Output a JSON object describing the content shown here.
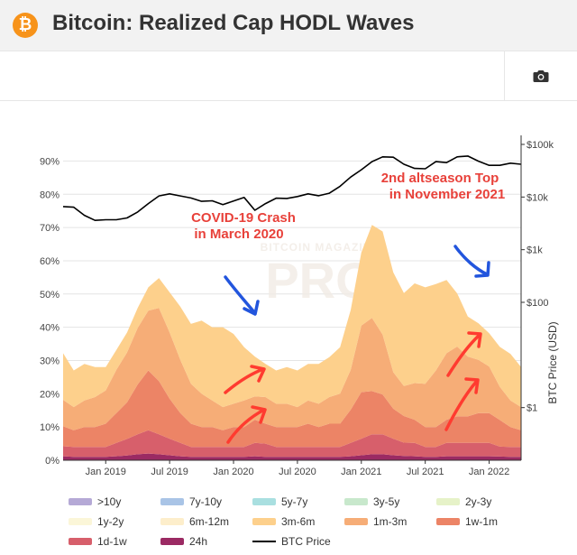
{
  "header": {
    "logo_glyph": "₿",
    "title": "Bitcoin: Realized Cap HODL Waves"
  },
  "toolbar": {
    "camera_icon": "camera-icon"
  },
  "watermark": {
    "top": "BITCOIN MAGAZINE",
    "bottom": "PRO"
  },
  "annotations": [
    {
      "text": "COVID-19 Crash",
      "color": "#e8413a"
    },
    {
      "text": "in March 2020",
      "color": "#e8413a"
    },
    {
      "text": "2nd altseason Top",
      "color": "#e8413a"
    },
    {
      "text": "in November 2021",
      "color": "#e8413a"
    }
  ],
  "chart_data": {
    "type": "area",
    "title": "Bitcoin: Realized Cap HODL Waves",
    "xlabel": "",
    "ylabel": "",
    "y2label": "BTC Price (USD)",
    "ylim": [
      0,
      95
    ],
    "y2lim_log": [
      0.1,
      100000
    ],
    "x_ticks": [
      "Jan 2019",
      "Jul 2019",
      "Jan 2020",
      "Jul 2020",
      "Jan 2021",
      "Jul 2021",
      "Jan 2022"
    ],
    "y_ticks": [
      "0%",
      "10%",
      "20%",
      "30%",
      "40%",
      "50%",
      "60%",
      "70%",
      "80%",
      "90%"
    ],
    "y2_ticks": [
      "$1",
      "$100",
      "$1k",
      "$10k",
      "$100k"
    ],
    "y2_tick_values": [
      1,
      100,
      1000,
      10000,
      100000
    ],
    "dates": [
      "2018-09",
      "2018-10",
      "2018-11",
      "2018-12",
      "2019-01",
      "2019-02",
      "2019-03",
      "2019-04",
      "2019-05",
      "2019-06",
      "2019-07",
      "2019-08",
      "2019-09",
      "2019-10",
      "2019-11",
      "2019-12",
      "2020-01",
      "2020-02",
      "2020-03",
      "2020-04",
      "2020-05",
      "2020-06",
      "2020-07",
      "2020-08",
      "2020-09",
      "2020-10",
      "2020-11",
      "2020-12",
      "2021-01",
      "2021-02",
      "2021-03",
      "2021-04",
      "2021-05",
      "2021-06",
      "2021-07",
      "2021-08",
      "2021-09",
      "2021-10",
      "2021-11",
      "2021-12",
      "2022-01",
      "2022-02",
      "2022-03",
      "2022-04"
    ],
    "series": [
      {
        "name": ">10y",
        "color": "#b5a9d6",
        "values": [
          0,
          0,
          0,
          0,
          0,
          0,
          0,
          0,
          0,
          0,
          0,
          0,
          0,
          0,
          0,
          0,
          0,
          0,
          0,
          0,
          0,
          0,
          0,
          0,
          0,
          0,
          0,
          0,
          0,
          0,
          0,
          0,
          0,
          0,
          0,
          0,
          0,
          0,
          0,
          0,
          0,
          0,
          0,
          0
        ]
      },
      {
        "name": "7y-10y",
        "color": "#a9c4e6",
        "values": [
          0,
          0,
          0,
          0,
          0,
          0,
          0,
          0,
          0,
          0,
          0,
          0,
          0,
          0,
          0,
          0,
          0,
          0,
          0,
          0,
          0,
          0,
          0,
          0,
          0,
          0,
          0,
          0,
          0,
          0,
          0,
          0,
          0,
          0,
          0,
          0,
          0,
          0,
          0,
          0,
          0,
          0,
          0,
          0
        ]
      },
      {
        "name": "5y-7y",
        "color": "#a9dfe0",
        "values": [
          0,
          0,
          0,
          0,
          0,
          0,
          0,
          0,
          0,
          0,
          0,
          0,
          0,
          0,
          0,
          0,
          0,
          0,
          0,
          0,
          0,
          0,
          0,
          0,
          0,
          0,
          0,
          0,
          0,
          0,
          0,
          0,
          0,
          0,
          0,
          0,
          0,
          0,
          0,
          0,
          0,
          0,
          0,
          0
        ]
      },
      {
        "name": "3y-5y",
        "color": "#c8e8cc",
        "values": [
          0,
          0,
          0,
          0,
          0,
          0,
          0,
          0,
          0,
          0,
          0,
          0,
          0,
          0,
          0,
          0,
          0,
          0,
          0,
          0,
          0,
          0,
          0,
          0,
          0,
          0,
          0,
          0,
          0,
          0,
          0,
          0,
          0,
          0,
          0,
          0,
          0,
          0,
          0,
          0,
          0,
          0,
          0,
          0
        ]
      },
      {
        "name": "2y-3y",
        "color": "#e6f2c8",
        "values": [
          0,
          0,
          0,
          0,
          0,
          0,
          0,
          0,
          0,
          0,
          0,
          0,
          0,
          0,
          0,
          0,
          0,
          0,
          0,
          0,
          0,
          0,
          0,
          0,
          0,
          0,
          0,
          0,
          0,
          0,
          0,
          0,
          0,
          0,
          0,
          0,
          0,
          0,
          0,
          0,
          0,
          0,
          0,
          0
        ]
      },
      {
        "name": "1y-2y",
        "color": "#fbf6d8",
        "values": [
          0,
          0,
          0,
          0,
          0,
          0,
          0,
          0,
          0,
          0,
          0,
          0,
          0,
          0,
          0,
          0,
          0,
          0,
          0,
          0,
          0,
          0,
          0,
          0,
          0,
          0,
          0,
          0,
          0,
          0,
          0,
          0,
          0,
          0,
          0,
          0,
          0,
          0,
          0,
          0,
          0,
          0,
          0,
          0
        ]
      },
      {
        "name": "6m-12m",
        "color": "#fdeecb",
        "values": [
          0,
          0,
          0,
          0,
          0,
          0,
          0,
          0,
          0,
          0,
          0,
          0,
          0,
          0,
          0,
          0,
          0,
          0,
          0,
          0,
          0,
          0,
          0,
          0,
          0,
          0,
          0,
          0,
          0,
          0,
          0,
          0,
          0,
          0,
          0,
          0,
          0,
          0,
          0,
          0,
          0,
          0,
          0,
          0
        ]
      },
      {
        "name": "3m-6m",
        "color": "#fdd08c",
        "values": [
          14,
          11,
          11,
          9,
          7,
          6,
          6,
          6,
          7,
          9,
          12,
          16,
          18,
          22,
          22,
          24,
          21,
          16,
          12,
          10,
          10,
          11,
          11,
          11,
          12,
          12,
          14,
          18,
          22,
          28,
          31,
          30,
          28,
          30,
          29,
          26,
          22,
          16,
          12,
          11,
          10,
          12,
          14,
          12
        ]
      },
      {
        "name": "1m-3m",
        "color": "#f6ad77",
        "values": [
          8,
          7,
          8,
          9,
          10,
          13,
          15,
          17,
          18,
          22,
          20,
          16,
          12,
          10,
          8,
          7,
          7,
          8,
          7,
          8,
          7,
          7,
          6,
          7,
          7,
          8,
          9,
          12,
          20,
          22,
          18,
          11,
          9,
          11,
          13,
          17,
          20,
          21,
          18,
          16,
          14,
          10,
          8,
          7
        ]
      },
      {
        "name": "1w-1m",
        "color": "#ec8466",
        "values": [
          6,
          5,
          6,
          6,
          7,
          9,
          11,
          15,
          18,
          16,
          12,
          9,
          7,
          6,
          6,
          5,
          6,
          6,
          7,
          6,
          6,
          6,
          6,
          7,
          6,
          7,
          7,
          10,
          14,
          13,
          12,
          9,
          8,
          7,
          6,
          6,
          7,
          8,
          8,
          9,
          9,
          8,
          6,
          5
        ]
      },
      {
        "name": "1d-1w",
        "color": "#d75f6b",
        "values": [
          3,
          3,
          3,
          3,
          3,
          4,
          5,
          6,
          7,
          6,
          5,
          4,
          3,
          3,
          3,
          3,
          3,
          3,
          4,
          4,
          3,
          3,
          3,
          3,
          3,
          3,
          3,
          4,
          5,
          6,
          6,
          5,
          4,
          4,
          3,
          3,
          4,
          4,
          4,
          4,
          4,
          3,
          3,
          3
        ]
      },
      {
        "name": "24h",
        "color": "#9b2a63",
        "values": [
          1.2,
          1,
          1,
          1,
          1,
          1.2,
          1.4,
          1.8,
          2,
          1.8,
          1.5,
          1.2,
          1,
          1,
          1,
          1,
          1,
          1,
          1.2,
          1,
          1,
          1,
          1,
          1,
          1,
          1,
          1,
          1.2,
          1.5,
          1.8,
          1.8,
          1.5,
          1.3,
          1.2,
          1,
          1,
          1.2,
          1.2,
          1.2,
          1.2,
          1.2,
          1.1,
          1,
          1
        ]
      }
    ],
    "btc_price": {
      "name": "BTC Price",
      "color": "#000000",
      "values": [
        6600,
        6400,
        4500,
        3600,
        3700,
        3700,
        4000,
        5200,
        7500,
        10500,
        11500,
        10500,
        9600,
        8300,
        8500,
        7200,
        8400,
        9800,
        5600,
        7500,
        9500,
        9400,
        10200,
        11500,
        10600,
        11800,
        16000,
        24000,
        33000,
        47000,
        58000,
        57000,
        42000,
        35000,
        34500,
        47000,
        45000,
        58000,
        60000,
        48000,
        40000,
        40000,
        44000,
        42000
      ]
    },
    "legend": [
      ">10y",
      "7y-10y",
      "5y-7y",
      "3y-5y",
      "2y-3y",
      "1y-2y",
      "6m-12m",
      "3m-6m",
      "1m-3m",
      "1w-1m",
      "1d-1w",
      "24h",
      "BTC Price"
    ],
    "grid": "horizontal",
    "legend_position": "bottom"
  }
}
